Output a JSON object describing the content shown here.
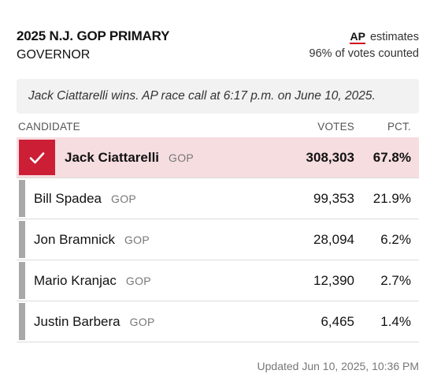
{
  "race": {
    "title": "2025 N.J. GOP PRIMARY",
    "office": "GOVERNOR"
  },
  "estimate": {
    "source_logo": "AP",
    "label": "estimates",
    "counted": "96% of votes counted"
  },
  "call_note": "Jack Ciattarelli wins. AP race call at 6:17 p.m. on June 10, 2025.",
  "columns": {
    "candidate": "CANDIDATE",
    "votes": "VOTES",
    "pct": "PCT."
  },
  "candidates": [
    {
      "name": "Jack Ciattarelli",
      "party": "GOP",
      "votes": "308,303",
      "pct": "67.8%",
      "winner": true
    },
    {
      "name": "Bill Spadea",
      "party": "GOP",
      "votes": "99,353",
      "pct": "21.9%",
      "winner": false
    },
    {
      "name": "Jon Bramnick",
      "party": "GOP",
      "votes": "28,094",
      "pct": "6.2%",
      "winner": false
    },
    {
      "name": "Mario Kranjac",
      "party": "GOP",
      "votes": "12,390",
      "pct": "2.7%",
      "winner": false
    },
    {
      "name": "Justin Barbera",
      "party": "GOP",
      "votes": "6,465",
      "pct": "1.4%",
      "winner": false
    }
  ],
  "updated": "Updated  Jun 10, 2025, 10:36 PM",
  "colors": {
    "winner_accent": "#cc1f36",
    "winner_row_bg": "#f6dde0",
    "bar_gray": "#a8a8a8",
    "ap_underline": "#d0021b"
  },
  "icons": {
    "winner_mark": "checkmark-icon"
  }
}
